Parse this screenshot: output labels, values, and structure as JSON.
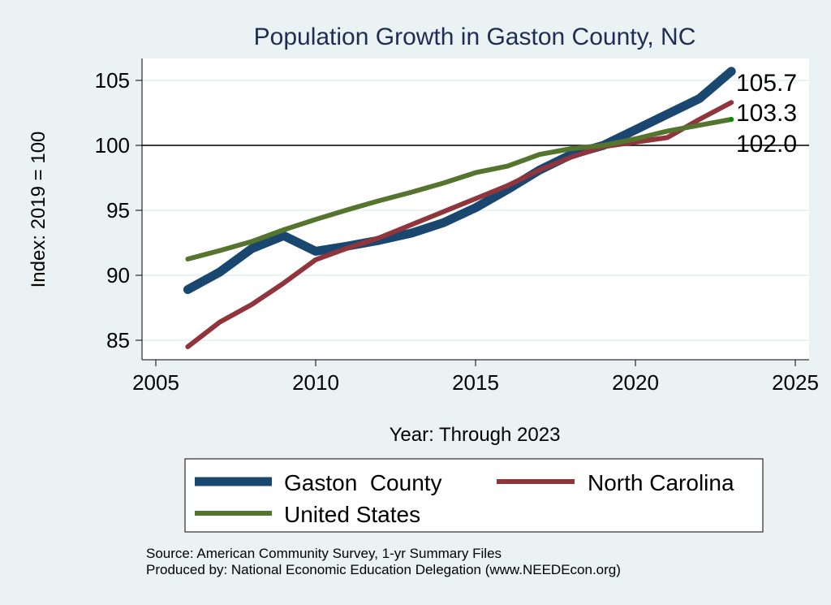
{
  "chart_data": {
    "type": "line",
    "title": "Population Growth in Gaston County, NC",
    "xlabel": "Year: Through 2023",
    "ylabel": "Index: 2019 = 100",
    "xlim": [
      2005,
      2025
    ],
    "ylim": [
      84,
      106.7
    ],
    "xticks": [
      "2005",
      "2010",
      "2015",
      "2020",
      "2025"
    ],
    "yticks": [
      "85",
      "90",
      "95",
      "100",
      "105"
    ],
    "reference_line": 100,
    "grid": true,
    "x": [
      2006,
      2007,
      2008,
      2009,
      2010,
      2011,
      2012,
      2013,
      2014,
      2015,
      2016,
      2017,
      2018,
      2019,
      2020,
      2021,
      2022,
      2023
    ],
    "series": [
      {
        "name": "Gaston  County",
        "color": "#1a476f",
        "values": [
          88.9,
          90.25,
          92.05,
          93.05,
          91.85,
          92.25,
          92.7,
          93.25,
          94.05,
          95.2,
          96.6,
          98.1,
          99.3,
          100,
          101.2,
          102.4,
          103.6,
          105.7
        ],
        "end_label": "105.7"
      },
      {
        "name": "North Carolina",
        "color": "#90353b",
        "values": [
          84.5,
          86.4,
          87.75,
          89.4,
          91.2,
          92.1,
          92.9,
          93.9,
          94.9,
          95.9,
          96.9,
          98.1,
          99.1,
          99.9,
          100.25,
          100.6,
          102.0,
          103.3
        ],
        "end_label": "103.3"
      },
      {
        "name": "United States",
        "color": "#55752f",
        "values": [
          91.25,
          91.9,
          92.6,
          93.5,
          94.3,
          95.05,
          95.75,
          96.4,
          97.1,
          97.9,
          98.4,
          99.3,
          99.75,
          100,
          100.5,
          101.1,
          101.55,
          102.0
        ],
        "end_label": "102.0"
      }
    ],
    "legend_position": "bottom"
  },
  "notes": {
    "source": "Source: American Community Survey, 1-yr Summary Files",
    "produced": "Produced by: National Economic Education Delegation (www.NEEDEcon.org)"
  }
}
